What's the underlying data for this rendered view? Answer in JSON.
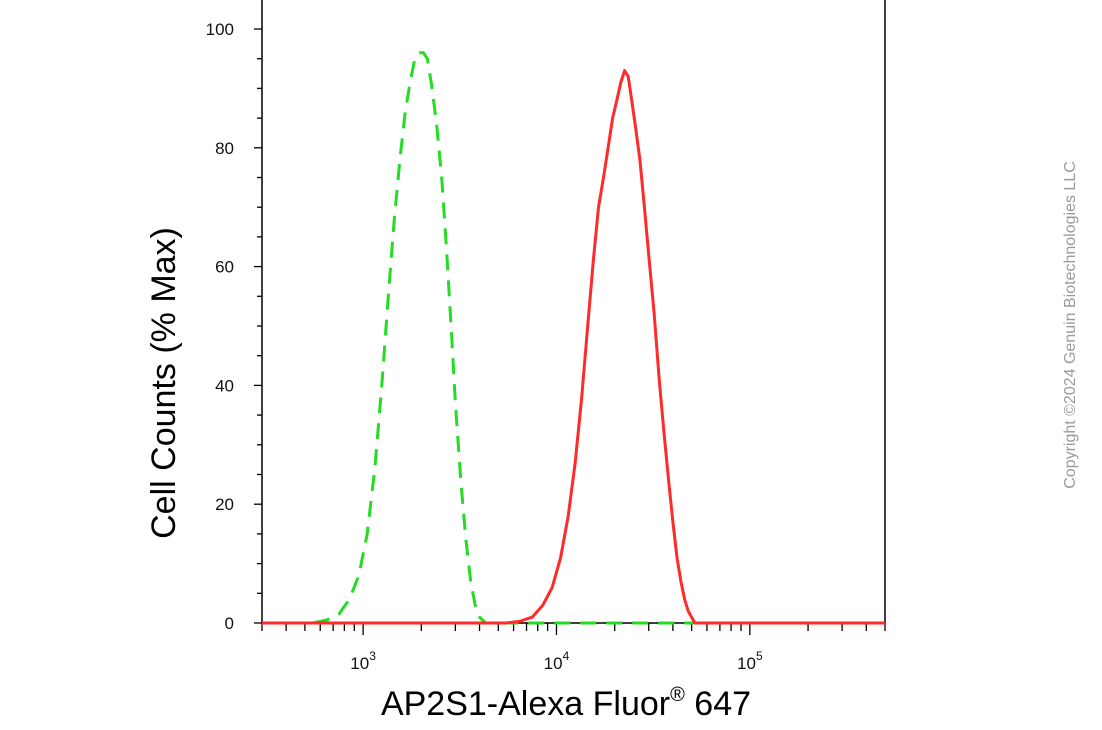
{
  "chart_data": {
    "type": "line",
    "title": "",
    "xlabel": "AP2S1-Alexa Fluor",
    "xlabel_superscript": "®",
    "xlabel_suffix": " 647",
    "ylabel": "Cell Counts (% Max)",
    "x_scale": "log",
    "xlim": [
      300,
      500000
    ],
    "ylim": [
      0,
      105
    ],
    "y_ticks": [
      0,
      20,
      40,
      60,
      80,
      100
    ],
    "x_ticks": [
      {
        "value": 1000,
        "base": "10",
        "exp": "3"
      },
      {
        "value": 10000,
        "base": "10",
        "exp": "4"
      },
      {
        "value": 100000,
        "base": "10",
        "exp": "5"
      }
    ],
    "grid": false,
    "legend": "none",
    "series": [
      {
        "color": "#22dd22",
        "dash": "dashed",
        "points": [
          [
            300,
            0
          ],
          [
            550,
            0
          ],
          [
            650,
            0.5
          ],
          [
            750,
            1.5
          ],
          [
            850,
            4
          ],
          [
            950,
            8
          ],
          [
            1050,
            15
          ],
          [
            1150,
            26
          ],
          [
            1250,
            40
          ],
          [
            1350,
            55
          ],
          [
            1450,
            68
          ],
          [
            1550,
            78
          ],
          [
            1650,
            86
          ],
          [
            1750,
            91
          ],
          [
            1850,
            95
          ],
          [
            1950,
            96
          ],
          [
            2050,
            96
          ],
          [
            2150,
            95
          ],
          [
            2250,
            91
          ],
          [
            2400,
            84
          ],
          [
            2550,
            75
          ],
          [
            2700,
            63
          ],
          [
            2850,
            50
          ],
          [
            3000,
            37
          ],
          [
            3200,
            24
          ],
          [
            3400,
            14
          ],
          [
            3600,
            7
          ],
          [
            3800,
            3
          ],
          [
            4000,
            1
          ],
          [
            4300,
            0
          ],
          [
            500000,
            0
          ]
        ]
      },
      {
        "color": "#ff2a2a",
        "dash": "solid",
        "points": [
          [
            300,
            0
          ],
          [
            5500,
            0
          ],
          [
            6500,
            0.3
          ],
          [
            7500,
            1
          ],
          [
            8500,
            3
          ],
          [
            9500,
            6
          ],
          [
            10500,
            11
          ],
          [
            11500,
            18
          ],
          [
            12500,
            27
          ],
          [
            13500,
            38
          ],
          [
            14500,
            50
          ],
          [
            15500,
            61
          ],
          [
            16500,
            70
          ],
          [
            17500,
            75
          ],
          [
            18500,
            80
          ],
          [
            19500,
            85
          ],
          [
            20500,
            88
          ],
          [
            21500,
            91
          ],
          [
            22500,
            93
          ],
          [
            23500,
            92
          ],
          [
            24500,
            88
          ],
          [
            25500,
            84
          ],
          [
            27000,
            78
          ],
          [
            28500,
            70
          ],
          [
            30000,
            62
          ],
          [
            32000,
            52
          ],
          [
            34000,
            41
          ],
          [
            36000,
            32
          ],
          [
            38000,
            24
          ],
          [
            40000,
            17
          ],
          [
            42000,
            11
          ],
          [
            44000,
            7
          ],
          [
            46000,
            4
          ],
          [
            48000,
            2
          ],
          [
            50000,
            1
          ],
          [
            52000,
            0
          ],
          [
            500000,
            0
          ]
        ]
      }
    ]
  },
  "watermark": "Copyright ©2024 Genuin Biotechnologies LLC"
}
